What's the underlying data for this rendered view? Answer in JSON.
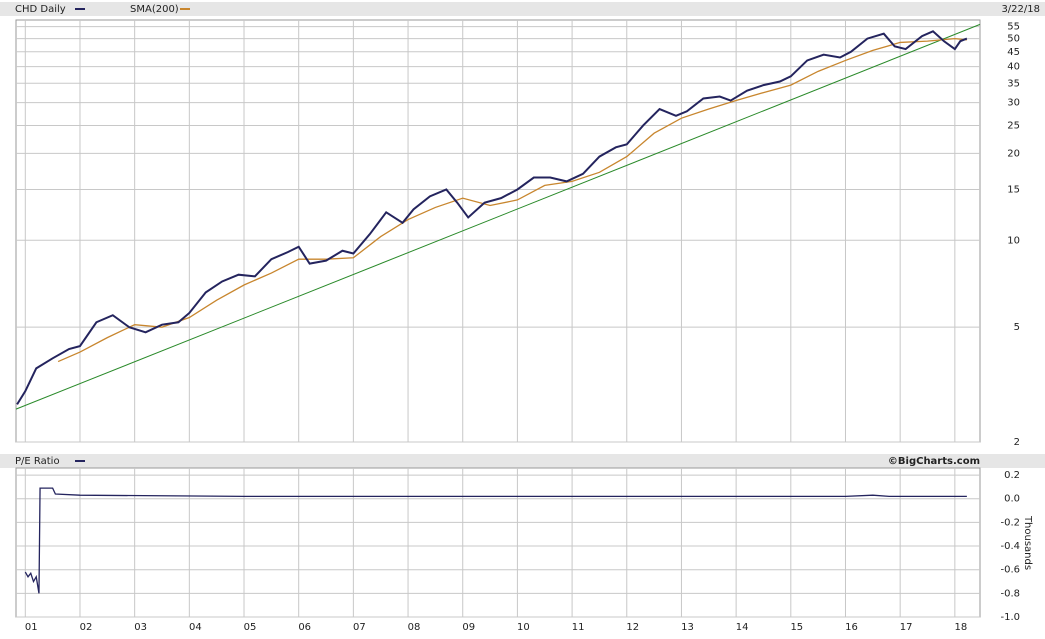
{
  "chart_data": [
    {
      "type": "line",
      "date": "3/22/18",
      "series": [
        {
          "name": "CHD Daily",
          "color": "#24245e",
          "x": [
            2000.85,
            2001.0,
            2001.2,
            2001.5,
            2001.8,
            2002.0,
            2002.3,
            2002.6,
            2002.9,
            2003.2,
            2003.5,
            2003.8,
            2004.0,
            2004.3,
            2004.6,
            2004.9,
            2005.2,
            2005.5,
            2005.8,
            2006.0,
            2006.2,
            2006.5,
            2006.8,
            2007.0,
            2007.3,
            2007.6,
            2007.9,
            2008.1,
            2008.4,
            2008.7,
            2008.9,
            2009.1,
            2009.4,
            2009.7,
            2010.0,
            2010.3,
            2010.6,
            2010.9,
            2011.2,
            2011.5,
            2011.8,
            2012.0,
            2012.3,
            2012.6,
            2012.9,
            2013.1,
            2013.4,
            2013.7,
            2013.9,
            2014.2,
            2014.5,
            2014.8,
            2015.0,
            2015.3,
            2015.6,
            2015.9,
            2016.1,
            2016.4,
            2016.7,
            2016.9,
            2017.1,
            2017.4,
            2017.6,
            2017.8,
            2018.0,
            2018.1,
            2018.22
          ],
          "values": [
            2.7,
            3.0,
            3.6,
            3.9,
            4.2,
            4.3,
            5.2,
            5.5,
            5.0,
            4.8,
            5.1,
            5.2,
            5.6,
            6.6,
            7.2,
            7.6,
            7.5,
            8.6,
            9.1,
            9.5,
            8.3,
            8.5,
            9.2,
            9.0,
            10.5,
            12.5,
            11.5,
            12.8,
            14.2,
            15.0,
            13.5,
            12.0,
            13.5,
            14.0,
            15.0,
            16.5,
            16.5,
            16.0,
            17.0,
            19.5,
            21.0,
            21.5,
            25,
            28.5,
            27,
            28,
            31,
            31.5,
            30.5,
            33,
            34.5,
            35.5,
            37,
            42,
            44,
            43,
            45,
            50,
            52,
            47,
            46,
            51,
            53,
            49,
            46,
            49,
            50
          ]
        },
        {
          "name": "SMA(200)",
          "color": "#c8862e",
          "x": [
            2001.6,
            2002.0,
            2002.5,
            2003.0,
            2003.5,
            2004.0,
            2004.5,
            2005.0,
            2005.5,
            2006.0,
            2006.5,
            2007.0,
            2007.5,
            2008.0,
            2008.5,
            2009.0,
            2009.5,
            2010.0,
            2010.5,
            2011.0,
            2011.5,
            2012.0,
            2012.5,
            2013.0,
            2013.5,
            2014.0,
            2014.5,
            2015.0,
            2015.5,
            2016.0,
            2016.5,
            2017.0,
            2017.5,
            2018.0,
            2018.22
          ],
          "values": [
            3.8,
            4.1,
            4.6,
            5.1,
            5.0,
            5.4,
            6.2,
            7.0,
            7.7,
            8.6,
            8.6,
            8.7,
            10.3,
            11.8,
            13.0,
            14.0,
            13.2,
            13.8,
            15.5,
            16.0,
            17.2,
            19.5,
            23.5,
            26.5,
            28.5,
            30.5,
            32.5,
            34.5,
            38.5,
            42,
            45.5,
            48.5,
            49,
            50,
            49.5
          ]
        }
      ],
      "trendline": {
        "color": "#2a8a2a",
        "x": [
          2000.83,
          2018.46
        ],
        "values": [
          2.6,
          56
        ]
      },
      "log_scale": true,
      "ylim": [
        2,
        58
      ],
      "yticks": [
        2,
        5,
        10,
        15,
        20,
        25,
        30,
        35,
        40,
        45,
        50,
        55
      ],
      "grid": true
    },
    {
      "type": "line",
      "source": "©BigCharts.com",
      "y_axis_label": "Thousands",
      "series": [
        {
          "name": "P/E Ratio",
          "color": "#24245e",
          "x": [
            2001.0,
            2001.05,
            2001.1,
            2001.15,
            2001.2,
            2001.25,
            2001.27,
            2001.5,
            2001.55,
            2002.0,
            2005.0,
            2008.0,
            2012.0,
            2016.0,
            2016.5,
            2016.8,
            2018.22
          ],
          "values": [
            -0.62,
            -0.66,
            -0.63,
            -0.7,
            -0.66,
            -0.8,
            0.09,
            0.09,
            0.04,
            0.03,
            0.02,
            0.02,
            0.02,
            0.02,
            0.03,
            0.02,
            0.02
          ]
        }
      ],
      "ylim": [
        -1.0,
        0.26
      ],
      "yticks": [
        0.2,
        {
          "value": 0,
          "label": "0.0"
        },
        -0.2,
        -0.4,
        -0.6,
        -0.8,
        {
          "value": -1,
          "label": "-1.0"
        }
      ],
      "xlim": [
        2000.83,
        2018.46
      ],
      "xticks": [
        {
          "value": 2001,
          "label": "01"
        },
        {
          "value": 2002,
          "label": "02"
        },
        {
          "value": 2003,
          "label": "03"
        },
        {
          "value": 2004,
          "label": "04"
        },
        {
          "value": 2005,
          "label": "05"
        },
        {
          "value": 2006,
          "label": "06"
        },
        {
          "value": 2007,
          "label": "07"
        },
        {
          "value": 2008,
          "label": "08"
        },
        {
          "value": 2009,
          "label": "09"
        },
        {
          "value": 2010,
          "label": "10"
        },
        {
          "value": 2011,
          "label": "11"
        },
        {
          "value": 2012,
          "label": "12"
        },
        {
          "value": 2013,
          "label": "13"
        },
        {
          "value": 2014,
          "label": "14"
        },
        {
          "value": 2015,
          "label": "15"
        },
        {
          "value": 2016,
          "label": "16"
        },
        {
          "value": 2017,
          "label": "17"
        },
        {
          "value": 2018,
          "label": "18"
        }
      ],
      "grid": true
    }
  ]
}
